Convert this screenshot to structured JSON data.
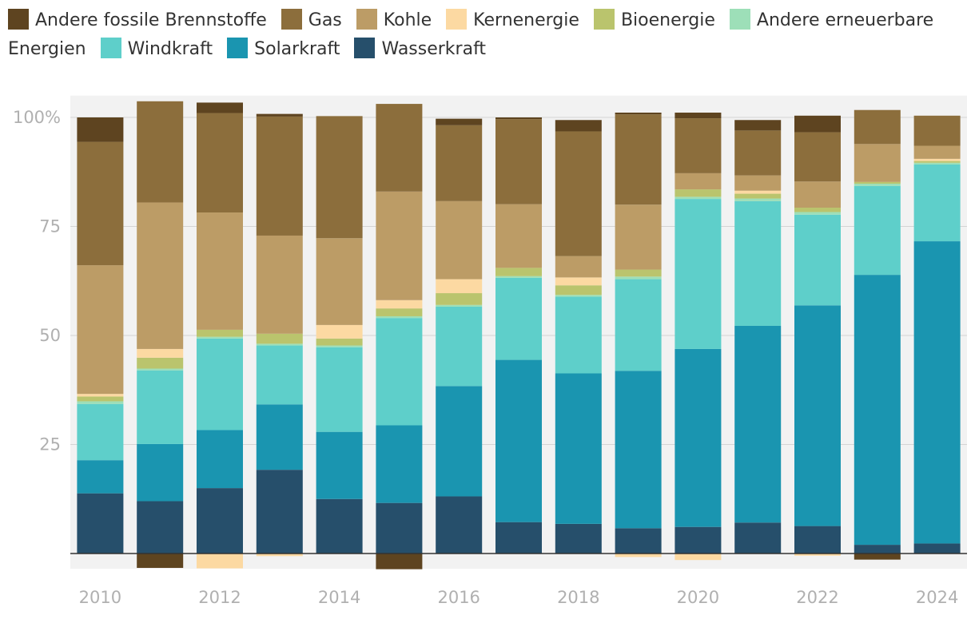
{
  "chart_data": {
    "type": "bar",
    "stacked": true,
    "title": "",
    "xlabel": "",
    "ylabel": "",
    "ylim": [
      -3.5,
      105
    ],
    "yticks": [
      25,
      50,
      75,
      100
    ],
    "ytick_labels": [
      "25",
      "50",
      "75",
      "100%"
    ],
    "categories": [
      "2010",
      "2011",
      "2012",
      "2013",
      "2014",
      "2015",
      "2016",
      "2017",
      "2018",
      "2019",
      "2020",
      "2021",
      "2022",
      "2023",
      "2024"
    ],
    "xtick_labels": [
      "2010",
      "",
      "2012",
      "",
      "2014",
      "",
      "2016",
      "",
      "2018",
      "",
      "2020",
      "",
      "2022",
      "",
      "2024"
    ],
    "series": [
      {
        "name": "Wasserkraft",
        "color": "#264f6b",
        "values": [
          13.8,
          12,
          15,
          19.2,
          12.5,
          11.6,
          13.1,
          7.2,
          6.8,
          5.8,
          6.1,
          7.1,
          6.3,
          2,
          2.3
        ]
      },
      {
        "name": "Solarkraft",
        "color": "#1a95b0",
        "values": [
          7.6,
          13.1,
          13.3,
          15,
          15.4,
          17.8,
          25.3,
          37.2,
          34.5,
          36.1,
          40.8,
          45.1,
          50.6,
          61.9,
          69.3
        ]
      },
      {
        "name": "Windkraft",
        "color": "#5ecfca",
        "values": [
          12.9,
          16.9,
          21,
          13.5,
          19.4,
          24.6,
          18.2,
          18.8,
          17.6,
          21,
          34.4,
          28.6,
          20.8,
          20.4,
          17.6
        ]
      },
      {
        "name": "Andere erneuerbare Energien",
        "color": "#9ddfb8",
        "values": [
          0.6,
          0.4,
          0.4,
          0.4,
          0.4,
          0.4,
          0.4,
          0.4,
          0.4,
          0.6,
          0.5,
          0.6,
          0.6,
          0.5,
          0.4
        ]
      },
      {
        "name": "Bioenergie",
        "color": "#bac46d",
        "values": [
          1.1,
          2.5,
          1.6,
          2.3,
          1.6,
          1.8,
          2.7,
          1.9,
          2.2,
          1.6,
          1.7,
          1.1,
          1,
          0.4,
          0.4
        ]
      },
      {
        "name": "Kernenergie",
        "color": "#fcd9a2",
        "values": [
          0.6,
          2,
          -3.4,
          -0.6,
          3.1,
          1.9,
          3.2,
          0,
          1.8,
          -0.8,
          -1.5,
          0.7,
          -0.5,
          0,
          0.5
        ]
      },
      {
        "name": "Kohle",
        "color": "#bc9c66",
        "values": [
          29.5,
          33.6,
          26.9,
          22.5,
          19.9,
          24.9,
          17.9,
          14.6,
          4.9,
          14.9,
          3.7,
          3.5,
          6,
          8.7,
          3
        ]
      },
      {
        "name": "Gas",
        "color": "#8c6e3c",
        "values": [
          28.3,
          23.2,
          22.8,
          27.3,
          28,
          20.1,
          17.4,
          19.5,
          28.6,
          20.7,
          12.6,
          10.3,
          11.3,
          7.8,
          6.9
        ]
      },
      {
        "name": "Andere fossile Brennstoffe",
        "color": "#5e4420",
        "values": [
          5.6,
          -3.3,
          2.4,
          0.6,
          0,
          -3.6,
          1.5,
          0.4,
          2.6,
          0.4,
          1.3,
          2.4,
          3.8,
          -1.4,
          0
        ]
      }
    ],
    "legend_order": [
      "Andere fossile Brennstoffe",
      "Gas",
      "Kohle",
      "Kernenergie",
      "Bioenergie",
      "Andere erneuerbare Energien",
      "Windkraft",
      "Solarkraft",
      "Wasserkraft"
    ],
    "legend_position": "top-left",
    "background_band_color": "#f2f2f2",
    "baseline_color": "#333333",
    "grid": true
  }
}
